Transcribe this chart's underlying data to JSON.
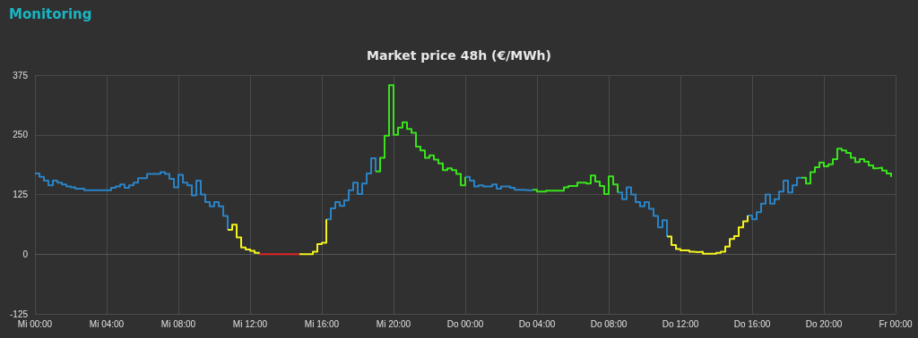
{
  "chart_data": {
    "type": "step",
    "title": "Market price 48h (€/MWh)",
    "annotations": [
      "Monitoring"
    ],
    "categories": [
      "Mi 00:00",
      null,
      null,
      null,
      null,
      null,
      null,
      null,
      null,
      null,
      null,
      null,
      null,
      null,
      null,
      null,
      "Mi 04:00",
      null,
      null,
      null,
      null,
      null,
      null,
      null,
      null,
      null,
      null,
      null,
      null,
      null,
      null,
      null,
      "Mi 08:00",
      null,
      null,
      null,
      null,
      null,
      null,
      null,
      null,
      null,
      null,
      null,
      null,
      null,
      null,
      null,
      "Mi 12:00",
      null,
      null,
      null,
      null,
      null,
      null,
      null,
      null,
      null,
      null,
      null,
      null,
      null,
      null,
      null,
      "Mi 16:00",
      null,
      null,
      null,
      null,
      null,
      null,
      null,
      null,
      null,
      null,
      null,
      null,
      null,
      null,
      null,
      "Mi 20:00",
      null,
      null,
      null,
      null,
      null,
      null,
      null,
      null,
      null,
      null,
      null,
      null,
      null,
      null,
      null,
      "Do 00:00",
      null,
      null,
      null,
      null,
      null,
      null,
      null,
      null,
      null,
      null,
      null,
      null,
      null,
      null,
      null,
      "Do 04:00",
      null,
      null,
      null,
      null,
      null,
      null,
      null,
      null,
      null,
      null,
      null,
      null,
      null,
      null,
      null,
      "Do 08:00",
      null,
      null,
      null,
      null,
      null,
      null,
      null,
      null,
      null,
      null,
      null,
      null,
      null,
      null,
      null,
      "Do 12:00",
      null,
      null,
      null,
      null,
      null,
      null,
      null,
      null,
      null,
      null,
      null,
      null,
      null,
      null,
      null,
      "Do 16:00",
      null,
      null,
      null,
      null,
      null,
      null,
      null,
      null,
      null,
      null,
      null,
      null,
      null,
      null,
      null,
      "Do 20:00",
      null,
      null,
      null,
      null,
      null,
      null,
      null,
      null,
      null,
      null,
      null,
      null,
      null,
      null,
      null,
      "Fr 00:00"
    ],
    "ylim": [
      -125,
      375
    ],
    "yticks": [
      -125,
      0,
      125,
      250,
      375
    ],
    "grid": true,
    "marker": "none",
    "line_style": "solid",
    "series": [
      {
        "color": "#2b83c6",
        "values": [
          169,
          162,
          154,
          144,
          154,
          150,
          146,
          142,
          140,
          137,
          137,
          134,
          134,
          134,
          134,
          134,
          134,
          139,
          142,
          146,
          139,
          144,
          150,
          159,
          159,
          168,
          168,
          168,
          172,
          168,
          158,
          140,
          166,
          150,
          144,
          123,
          154,
          125,
          109,
          100,
          109,
          100,
          80,
          51,
          null,
          null,
          null,
          null,
          null,
          null,
          null,
          null,
          null,
          null,
          null,
          null,
          null,
          null,
          null,
          null,
          null,
          null,
          null,
          null,
          null,
          73,
          96,
          109,
          101,
          113,
          134,
          150,
          126,
          148,
          169,
          201,
          173,
          null,
          null,
          null,
          null,
          null,
          null,
          null,
          null,
          null,
          null,
          null,
          null,
          null,
          null,
          null,
          null,
          null,
          null,
          null,
          162,
          154,
          142,
          144,
          142,
          142,
          146,
          137,
          142,
          142,
          139,
          135,
          135,
          134,
          134,
          135,
          null,
          null,
          null,
          null,
          null,
          null,
          null,
          null,
          null,
          null,
          null,
          null,
          null,
          null,
          null,
          null,
          null,
          null,
          129,
          115,
          140,
          125,
          109,
          100,
          109,
          95,
          80,
          56,
          71,
          37,
          null,
          null,
          null,
          null,
          null,
          null,
          null,
          null,
          null,
          null,
          null,
          null,
          null,
          null,
          null,
          null,
          null,
          81,
          73,
          88,
          106,
          125,
          106,
          115,
          131,
          154,
          129,
          144,
          160,
          160,
          null,
          null,
          null,
          null,
          null,
          null,
          null,
          null,
          null,
          null,
          null,
          null,
          null,
          null,
          null,
          null,
          null,
          null,
          null,
          null,
          null
        ]
      },
      {
        "color": "#f2f21e",
        "values": [
          null,
          null,
          null,
          null,
          null,
          null,
          null,
          null,
          null,
          null,
          null,
          null,
          null,
          null,
          null,
          null,
          null,
          null,
          null,
          null,
          null,
          null,
          null,
          null,
          null,
          null,
          null,
          null,
          null,
          null,
          null,
          null,
          null,
          null,
          null,
          null,
          null,
          null,
          null,
          null,
          null,
          null,
          null,
          51,
          62,
          35,
          14,
          10,
          7,
          3,
          0,
          null,
          null,
          null,
          null,
          null,
          null,
          null,
          null,
          0,
          0,
          0,
          5,
          21,
          24,
          73,
          null,
          null,
          null,
          null,
          null,
          null,
          null,
          null,
          null,
          null,
          null,
          null,
          null,
          null,
          null,
          null,
          null,
          null,
          null,
          null,
          null,
          null,
          null,
          null,
          null,
          null,
          null,
          null,
          null,
          null,
          null,
          null,
          null,
          null,
          null,
          null,
          null,
          null,
          null,
          null,
          null,
          null,
          null,
          null,
          null,
          null,
          null,
          null,
          null,
          null,
          null,
          null,
          null,
          null,
          null,
          null,
          null,
          null,
          null,
          null,
          null,
          null,
          null,
          null,
          null,
          null,
          null,
          null,
          null,
          null,
          null,
          null,
          null,
          null,
          null,
          37,
          19,
          11,
          8,
          8,
          5,
          4,
          5,
          1,
          1,
          1,
          3,
          5,
          16,
          32,
          38,
          56,
          69,
          81,
          null,
          null,
          null,
          null,
          null,
          null,
          null,
          null,
          null,
          null,
          null,
          null,
          null,
          null,
          null,
          null,
          null,
          null,
          null,
          null,
          null,
          null,
          null,
          null,
          null,
          null,
          null,
          null,
          null,
          null,
          null,
          null,
          null
        ]
      },
      {
        "color": "#e02424",
        "values": [
          null,
          null,
          null,
          null,
          null,
          null,
          null,
          null,
          null,
          null,
          null,
          null,
          null,
          null,
          null,
          null,
          null,
          null,
          null,
          null,
          null,
          null,
          null,
          null,
          null,
          null,
          null,
          null,
          null,
          null,
          null,
          null,
          null,
          null,
          null,
          null,
          null,
          null,
          null,
          null,
          null,
          null,
          null,
          null,
          null,
          null,
          null,
          null,
          null,
          null,
          0,
          0,
          0,
          0,
          0,
          0,
          0,
          0,
          0,
          0,
          null,
          null,
          null,
          null,
          null,
          null,
          null,
          null,
          null,
          null,
          null,
          null,
          null,
          null,
          null,
          null,
          null,
          null,
          null,
          null,
          null,
          null,
          null,
          null,
          null,
          null,
          null,
          null,
          null,
          null,
          null,
          null,
          null,
          null,
          null,
          null,
          null,
          null,
          null,
          null,
          null,
          null,
          null,
          null,
          null,
          null,
          null,
          null,
          null,
          null,
          null,
          null,
          null,
          null,
          null,
          null,
          null,
          null,
          null,
          null,
          null,
          null,
          null,
          null,
          null,
          null,
          null,
          null,
          null,
          null,
          null,
          null,
          null,
          null,
          null,
          null,
          null,
          null,
          null,
          null,
          null,
          null,
          null,
          null,
          null,
          null,
          null,
          null,
          null,
          null,
          null,
          null,
          null,
          null,
          null,
          null,
          null,
          null,
          null,
          null,
          null,
          null,
          null,
          null,
          null,
          null,
          null,
          null,
          null,
          null,
          null,
          null,
          null,
          null,
          null,
          null,
          null,
          null,
          null,
          null,
          null,
          null,
          null,
          null,
          null,
          null,
          null,
          null,
          null,
          null,
          null,
          null,
          null
        ]
      },
      {
        "color": "#3ae21c",
        "values": [
          null,
          null,
          null,
          null,
          null,
          null,
          null,
          null,
          null,
          null,
          null,
          null,
          null,
          null,
          null,
          null,
          null,
          null,
          null,
          null,
          null,
          null,
          null,
          null,
          null,
          null,
          null,
          null,
          null,
          null,
          null,
          null,
          null,
          null,
          null,
          null,
          null,
          null,
          null,
          null,
          null,
          null,
          null,
          null,
          null,
          null,
          null,
          null,
          null,
          null,
          null,
          null,
          null,
          null,
          null,
          null,
          null,
          null,
          null,
          null,
          null,
          null,
          null,
          null,
          null,
          null,
          null,
          null,
          null,
          null,
          null,
          null,
          null,
          null,
          null,
          null,
          173,
          202,
          248,
          354,
          250,
          265,
          276,
          262,
          254,
          225,
          217,
          202,
          207,
          198,
          190,
          176,
          180,
          176,
          168,
          144,
          162,
          null,
          null,
          null,
          null,
          null,
          null,
          null,
          null,
          null,
          null,
          null,
          null,
          null,
          null,
          135,
          131,
          131,
          133,
          133,
          133,
          133,
          140,
          143,
          143,
          150,
          150,
          148,
          165,
          152,
          143,
          126,
          163,
          146,
          129,
          null,
          null,
          null,
          null,
          null,
          null,
          null,
          null,
          null,
          null,
          null,
          null,
          null,
          null,
          null,
          null,
          null,
          null,
          null,
          null,
          null,
          null,
          null,
          null,
          null,
          null,
          null,
          null,
          null,
          null,
          null,
          null,
          null,
          null,
          null,
          null,
          null,
          null,
          null,
          null,
          160,
          148,
          172,
          182,
          192,
          184,
          188,
          199,
          221,
          217,
          212,
          202,
          193,
          199,
          194,
          186,
          180,
          181,
          175,
          169,
          162,
          null
        ]
      }
    ]
  }
}
